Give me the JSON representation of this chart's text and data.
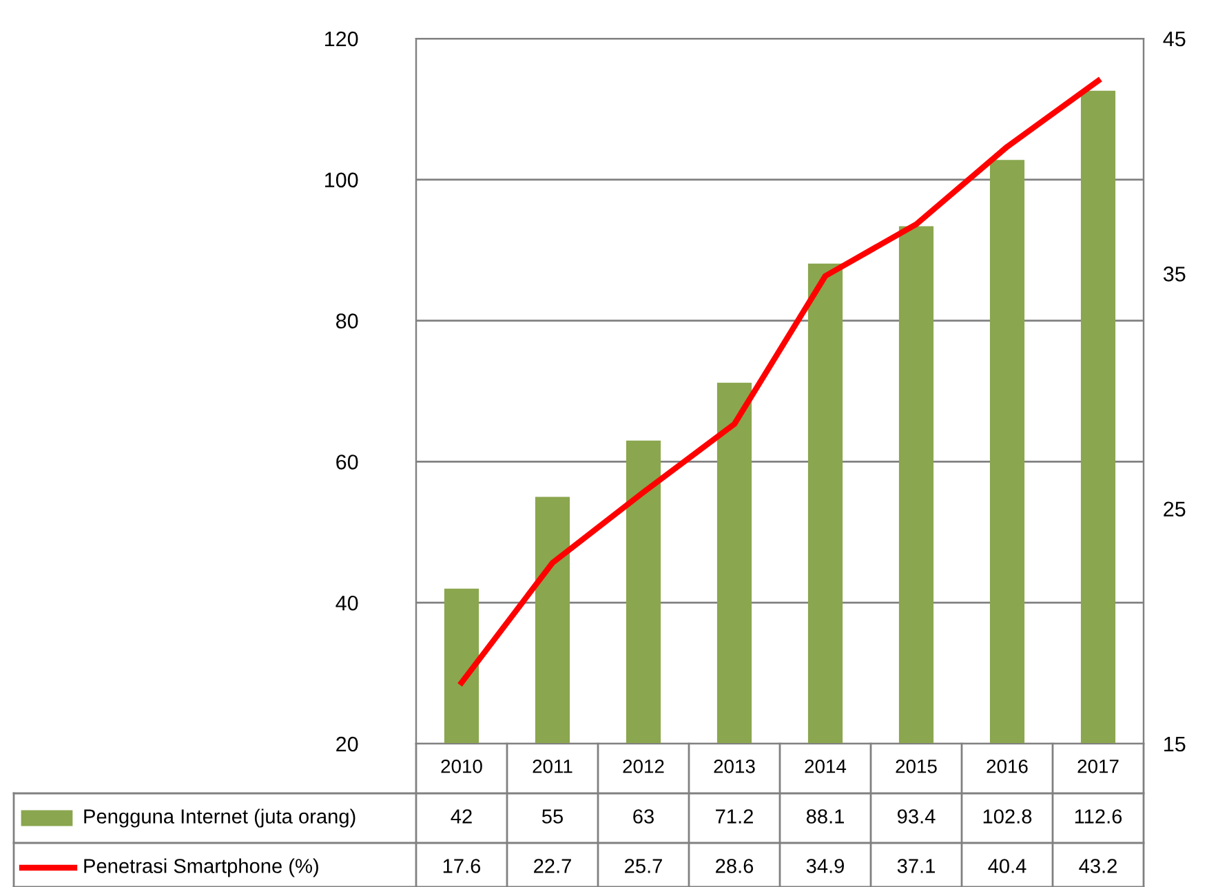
{
  "chart_data": {
    "type": "bar",
    "categories": [
      "2010",
      "2011",
      "2012",
      "2013",
      "2014",
      "2015",
      "2016",
      "2017"
    ],
    "series": [
      {
        "name": "Pengguna Internet (juta orang)",
        "color": "#8aa64e",
        "values": [
          42,
          55,
          63,
          71.2,
          88.1,
          93.4,
          102.8,
          112.6
        ]
      },
      {
        "name": "Penetrasi Smartphone (%)",
        "type": "line",
        "axis": "y2",
        "color": "#ff0000",
        "values": [
          17.6,
          22.7,
          25.7,
          28.6,
          34.9,
          37.1,
          40.4,
          43.2
        ]
      }
    ],
    "ylim": [
      20,
      120
    ],
    "yticks": [
      20,
      40,
      60,
      80,
      100,
      120
    ],
    "y2lim": [
      15,
      45
    ],
    "y2ticks": [
      15,
      25,
      35,
      45
    ],
    "grid": "y",
    "data_labels": true,
    "legend": "bottom",
    "marker": "none",
    "line_style": "solid"
  }
}
